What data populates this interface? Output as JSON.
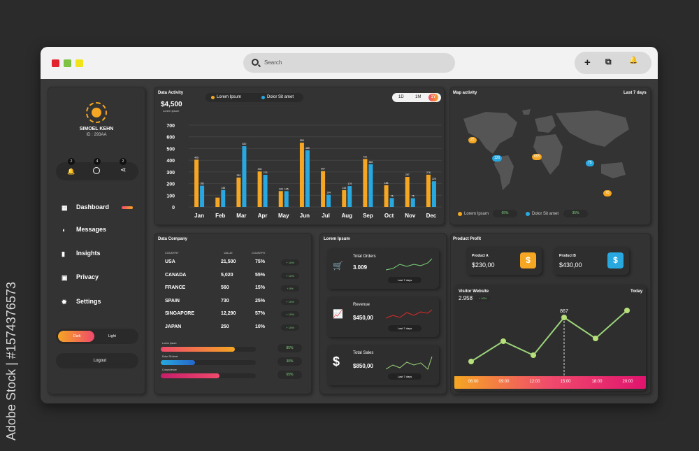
{
  "watermark": "Adobe Stock | #1574376573",
  "search": {
    "placeholder": "Search"
  },
  "toolbar": {
    "add": "+",
    "copy": "⧉",
    "bell": "🔔"
  },
  "user": {
    "name": "SIMOEL KEHN",
    "id": "ID : 293AA"
  },
  "notifications": [
    {
      "count": "2",
      "icon": "bell-icon"
    },
    {
      "count": "4",
      "icon": "globe-icon"
    },
    {
      "count": "2",
      "icon": "share-icon"
    }
  ],
  "nav": [
    {
      "label": "Dashboard"
    },
    {
      "label": "Messages"
    },
    {
      "label": "Insights"
    },
    {
      "label": "Privacy"
    },
    {
      "label": "Settings"
    }
  ],
  "theme": {
    "dark": "Dark",
    "light": "Light"
  },
  "logout": "Logout",
  "data_activity": {
    "title": "Data Activity",
    "amount": "$4,500",
    "sub": "Lorem Ipsum",
    "legend": [
      "Lorem Ipsum",
      "Dolor Sit amet"
    ],
    "ranges": [
      "1D",
      "1M",
      "1Y"
    ]
  },
  "chart_data": {
    "type": "bar",
    "categories": [
      "Jan",
      "Feb",
      "Mar",
      "Apr",
      "May",
      "Jun",
      "Jul",
      "Aug",
      "Sep",
      "Oct",
      "Nov",
      "Dec"
    ],
    "series": [
      {
        "name": "Lorem Ipsum",
        "color": "#f5a623",
        "values": [
          405,
          80,
          252,
          304,
          136,
          550,
          307,
          144,
          411,
          186,
          257,
          276
        ],
        "labels": [
          "405",
          "",
          "252",
          "304",
          "136",
          "550",
          "307",
          "144",
          "411",
          "186",
          "257",
          "276"
        ]
      },
      {
        "name": "Dolor Sit amet",
        "color": "#29a8e0",
        "values": [
          182,
          145,
          520,
          275,
          135,
          485,
          104,
          179,
          366,
          76,
          75,
          220
        ],
        "labels": [
          "182",
          "145",
          "520",
          "275",
          "135",
          "485",
          "104",
          "179",
          "366",
          "76",
          "75",
          "220"
        ]
      }
    ],
    "yticks": [
      "0",
      "100",
      "200",
      "300",
      "400",
      "500",
      "600",
      "700"
    ],
    "ylim": [
      0,
      700
    ],
    "grid": true
  },
  "map": {
    "title": "Map activity",
    "range": "Last 7 days",
    "legend": [
      {
        "label": "Lorem Ipsum",
        "pct": "65%"
      },
      {
        "label": "Dolor Sit amet",
        "pct": "35%"
      }
    ],
    "tags": [
      "25",
      "120",
      "655",
      "75",
      "70"
    ]
  },
  "company": {
    "title": "Data Company",
    "headers": [
      "COUNTRY",
      "VALUE",
      "COUNTRY"
    ],
    "rows": [
      {
        "c": "USA",
        "v": "21,500",
        "p": "75%",
        "d": "+ 10%"
      },
      {
        "c": "CANADA",
        "v": "5,020",
        "p": "55%",
        "d": "+ 10%"
      },
      {
        "c": "FRANCE",
        "v": "560",
        "p": "15%",
        "d": "+ 5%"
      },
      {
        "c": "SPAIN",
        "v": "730",
        "p": "25%",
        "d": "+ 10%"
      },
      {
        "c": "SINGAPORE",
        "v": "12,290",
        "p": "57%",
        "d": "+ 10%"
      },
      {
        "c": "JAPAN",
        "v": "250",
        "p": "10%",
        "d": "+ 10%"
      }
    ],
    "progress": [
      {
        "label": "Lorem Ipsum",
        "pct": "85%",
        "fill": 0.78
      },
      {
        "label": "Dolor Sit Amet",
        "pct": "30%",
        "fill": 0.36
      },
      {
        "label": "Consectetuer",
        "pct": "65%",
        "fill": 0.62
      }
    ]
  },
  "lorem": {
    "title": "Lorem Ipsum",
    "cards": [
      {
        "title": "Total Orders",
        "value": "3.009",
        "foot": "Last 7 days",
        "icon": "cart-icon"
      },
      {
        "title": "Revenue",
        "value": "$450,00",
        "foot": "Last 7 days",
        "icon": "growth-chart-icon"
      },
      {
        "title": "Total Sales",
        "value": "$850,00",
        "foot": "Last 7 days",
        "icon": "dollar-icon"
      }
    ]
  },
  "profit": {
    "title": "Product Profit",
    "a": {
      "name": "Product A",
      "value": "$230,00"
    },
    "b": {
      "name": "Product B",
      "value": "$430,00"
    }
  },
  "visitor": {
    "title": "Visitor Website",
    "value": "2.958",
    "badge": "+ 10%",
    "range": "Today",
    "peak": "867",
    "times": [
      "06:00",
      "09:00",
      "12:00",
      "15:00",
      "18:00",
      "20:00"
    ]
  }
}
